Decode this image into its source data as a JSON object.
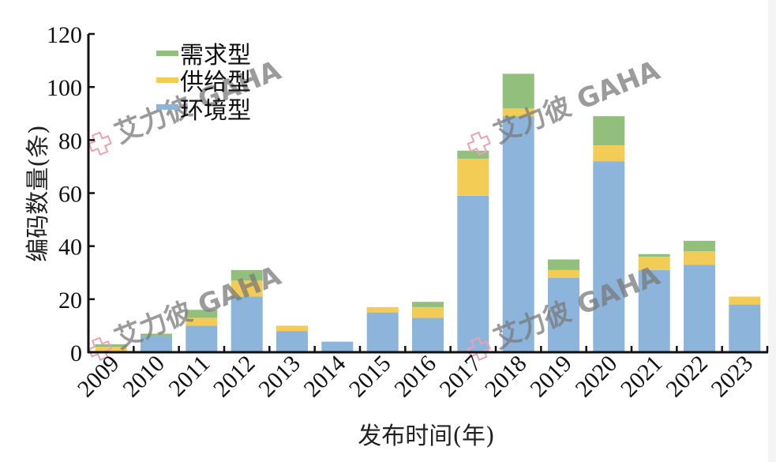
{
  "chart_data": {
    "type": "bar",
    "stacked": true,
    "title": "",
    "xlabel": "发布时间(年)",
    "ylabel": "编码数量(条)",
    "ylim": [
      0,
      120
    ],
    "yticks": [
      0,
      20,
      40,
      60,
      80,
      100,
      120
    ],
    "categories": [
      "2009",
      "2010",
      "2011",
      "2012",
      "2013",
      "2014",
      "2015",
      "2016",
      "2017",
      "2018",
      "2019",
      "2020",
      "2021",
      "2022",
      "2023"
    ],
    "series": [
      {
        "name": "环境型",
        "color": "#8db5dc",
        "values": [
          0,
          6,
          10,
          21,
          8,
          4,
          15,
          13,
          59,
          89,
          28,
          72,
          31,
          33,
          18
        ]
      },
      {
        "name": "供给型",
        "color": "#f3cc55",
        "values": [
          2,
          0,
          3,
          6,
          2,
          0,
          2,
          4,
          14,
          3,
          3,
          6,
          5,
          5,
          3
        ]
      },
      {
        "name": "需求型",
        "color": "#93bf7c",
        "values": [
          1,
          1,
          3,
          4,
          0,
          0,
          0,
          2,
          3,
          13,
          4,
          11,
          1,
          4,
          0
        ]
      }
    ],
    "legend": {
      "position": "top-left",
      "entries": [
        "需求型",
        "供给型",
        "环境型"
      ]
    },
    "grid": false
  },
  "legend": {
    "items": [
      {
        "label": "需求型",
        "color": "#93bf7c"
      },
      {
        "label": "供给型",
        "color": "#f3cc55"
      },
      {
        "label": "环境型",
        "color": "#8db5dc"
      }
    ]
  },
  "axes": {
    "xlabel": "发布时间(年)",
    "ylabel": "编码数量(条)"
  },
  "watermark": {
    "text": "艾力彼 GAHA"
  }
}
